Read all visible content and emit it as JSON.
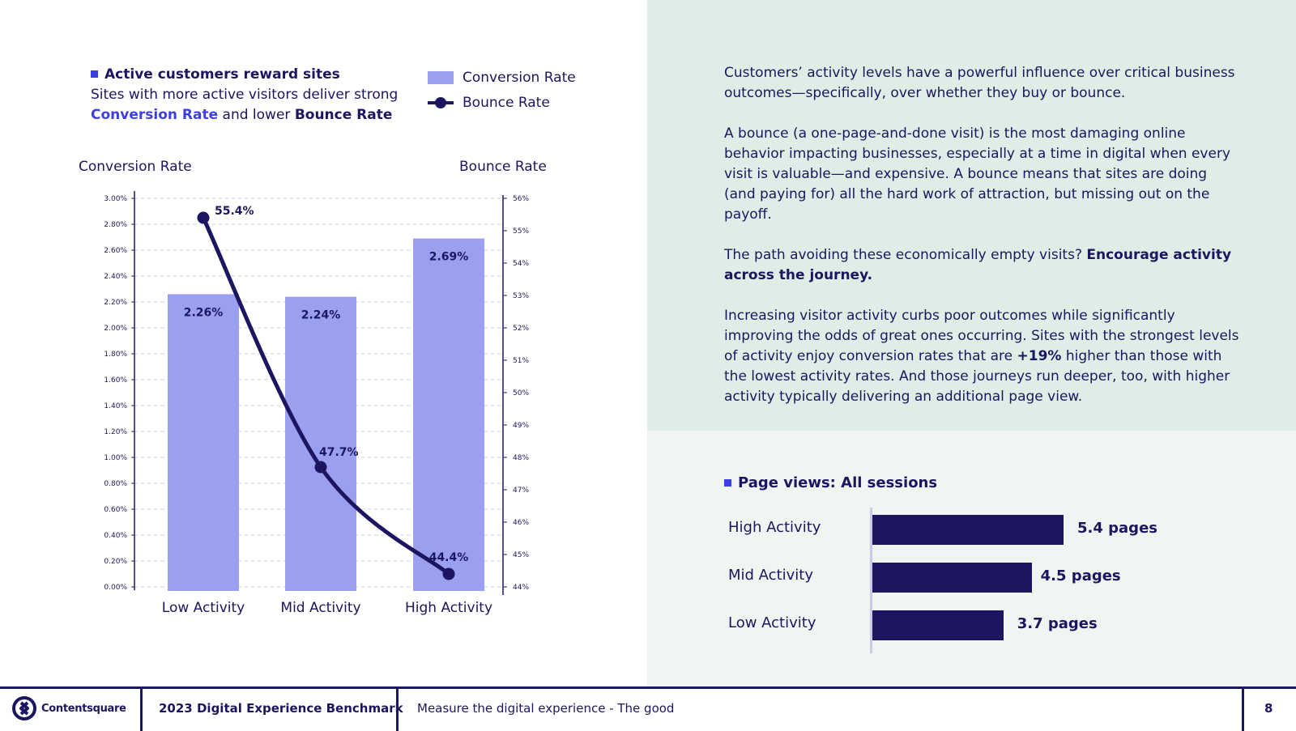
{
  "colors": {
    "accent": "#3d3fe0",
    "bar": "#9b9ff0",
    "dark": "#1c1660",
    "panel_top": "#deeee6",
    "panel_bottom": "#eff6f2"
  },
  "left_header": {
    "title": "Active customers reward sites",
    "subtitle_pre": "Sites with more active visitors deliver strong",
    "subtitle_hl1": "Conversion Rate",
    "subtitle_mid": "and lower",
    "subtitle_hl2": "Bounce Rate"
  },
  "legend": {
    "bar_label": "Conversion Rate",
    "line_label": "Bounce Rate"
  },
  "chart_data": {
    "type": "bar",
    "categories": [
      "Low Activity",
      "Mid Activity",
      "High Activity"
    ],
    "series": [
      {
        "name": "Conversion Rate",
        "type": "bar",
        "axis": "left",
        "values": [
          2.26,
          2.24,
          2.69
        ],
        "labels": [
          "2.26%",
          "2.24%",
          "2.69%"
        ]
      },
      {
        "name": "Bounce Rate",
        "type": "line",
        "axis": "right",
        "values": [
          55.4,
          47.7,
          44.4
        ],
        "labels": [
          "55.4%",
          "47.7%",
          "44.4%"
        ]
      }
    ],
    "ylabel_left": "Conversion Rate",
    "ylabel_right": "Bounce Rate",
    "ylim_left": [
      0,
      3.0
    ],
    "ylim_right": [
      44,
      56
    ],
    "left_ticks": [
      "0.00%",
      "0.20%",
      "0.40%",
      "0.60%",
      "0.80%",
      "1.00%",
      "1.20%",
      "1.40%",
      "1.60%",
      "1.80%",
      "2.00%",
      "2.20%",
      "2.40%",
      "2.60%",
      "2.80%",
      "3.00%"
    ],
    "right_ticks": [
      "44%",
      "45%",
      "46%",
      "47%",
      "48%",
      "49%",
      "50%",
      "51%",
      "52%",
      "53%",
      "54%",
      "55%",
      "56%"
    ],
    "grid": true
  },
  "prose": {
    "p1": "Customers’ activity levels have a powerful influence over critical business outcomes—specifically, over whether they buy or bounce.",
    "p2": "A bounce (a one-page-and-done visit) is the most damaging online behavior impacting businesses, especially at a time in digital when every visit is valuable—and expensive. A bounce means that sites are doing (and paying for) all the hard work of attraction, but missing out on the payoff.",
    "p3_pre": "The path avoiding these economically empty visits?",
    "p3_bold": "Encourage activity across the journey.",
    "p4_pre": "Increasing visitor activity curbs poor outcomes while significantly improving the odds of great ones occurring. Sites with the strongest levels of activity enjoy conversion rates that are",
    "p4_bold": "+19%",
    "p4_post": "higher than those with the lowest activity rates. And those journeys run deeper, too, with higher activity typically delivering an additional page view."
  },
  "page_views": {
    "title": "Page views: All sessions",
    "rows": [
      {
        "label": "High Activity",
        "value": 5.4,
        "value_label": "5.4 pages"
      },
      {
        "label": "Mid Activity",
        "value": 4.5,
        "value_label": "4.5 pages"
      },
      {
        "label": "Low Activity",
        "value": 3.7,
        "value_label": "3.7 pages"
      }
    ]
  },
  "footer": {
    "brand": "Contentsquare",
    "report": "2023 Digital Experience Benchmark",
    "section": "Measure the digital experience - The good",
    "page": "8"
  }
}
